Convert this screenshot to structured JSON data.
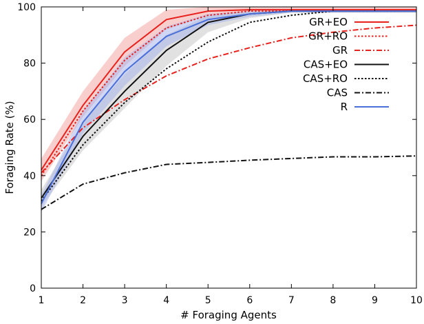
{
  "chart_data": {
    "type": "line",
    "title": "",
    "xlabel": "# Foraging Agents",
    "ylabel": "Foraging Rate (%)",
    "xlim": [
      1,
      10
    ],
    "ylim": [
      0,
      100
    ],
    "x_ticks": [
      1,
      2,
      3,
      4,
      5,
      6,
      7,
      8,
      9,
      10
    ],
    "y_ticks": [
      0,
      20,
      40,
      60,
      80,
      100
    ],
    "grid": false,
    "legend_position": "right",
    "x": [
      1,
      2,
      3,
      4,
      5,
      6,
      7,
      8,
      9,
      10
    ],
    "series": [
      {
        "name": "GR+EO",
        "color": "#e8211c",
        "dash": "solid",
        "values": [
          42,
          65,
          84,
          95.5,
          98.5,
          99,
          99,
          99,
          99,
          99
        ],
        "band": {
          "lower": [
            38,
            61,
            79,
            92,
            97,
            98.5,
            98.5,
            98.5,
            98.5,
            98.5
          ],
          "upper": [
            46,
            70,
            89,
            99,
            100,
            100,
            100,
            100,
            100,
            100
          ],
          "color": "#f4a8a6"
        }
      },
      {
        "name": "GR+RO",
        "color": "#e8211c",
        "dash": "dot",
        "values": [
          40,
          63,
          81,
          92.5,
          97,
          98.5,
          98.5,
          98.5,
          98.5,
          98.5
        ]
      },
      {
        "name": "GR",
        "color": "#e8211c",
        "dash": "dashdot",
        "values": [
          41,
          57,
          67,
          75.5,
          81.5,
          85.5,
          89,
          91,
          92.5,
          93.5
        ]
      },
      {
        "name": "CAS+EO",
        "color": "#111111",
        "dash": "solid",
        "values": [
          32,
          54,
          70,
          84.5,
          94.5,
          97.5,
          98.5,
          98.5,
          98.5,
          98.5
        ],
        "band": {
          "lower": [
            29,
            49,
            64,
            79,
            91,
            96,
            98,
            98,
            98,
            98
          ],
          "upper": [
            35,
            59,
            76,
            90,
            97,
            98.8,
            99,
            99,
            99,
            99
          ],
          "color": "#c8c8c8"
        }
      },
      {
        "name": "CAS+RO",
        "color": "#111111",
        "dash": "dot",
        "values": [
          31,
          51,
          66,
          78,
          87.5,
          94.5,
          97,
          98.5,
          98.5,
          98.5
        ]
      },
      {
        "name": "CAS",
        "color": "#111111",
        "dash": "dashdot",
        "values": [
          28,
          37,
          41,
          44,
          44.7,
          45.5,
          46.1,
          46.7,
          46.7,
          47
        ]
      },
      {
        "name": "R",
        "color": "#4b6fd8",
        "dash": "solid",
        "values": [
          30,
          59,
          77,
          89.5,
          95.5,
          97.5,
          98.5,
          98.5,
          98.5,
          98.5
        ],
        "band": {
          "lower": [
            27,
            55,
            72,
            86,
            93.5,
            96.5,
            98,
            98,
            98,
            98
          ],
          "upper": [
            33,
            63,
            82,
            93,
            97.5,
            98.5,
            99,
            99,
            99,
            99
          ],
          "color": "#a8b6ec"
        }
      }
    ]
  }
}
